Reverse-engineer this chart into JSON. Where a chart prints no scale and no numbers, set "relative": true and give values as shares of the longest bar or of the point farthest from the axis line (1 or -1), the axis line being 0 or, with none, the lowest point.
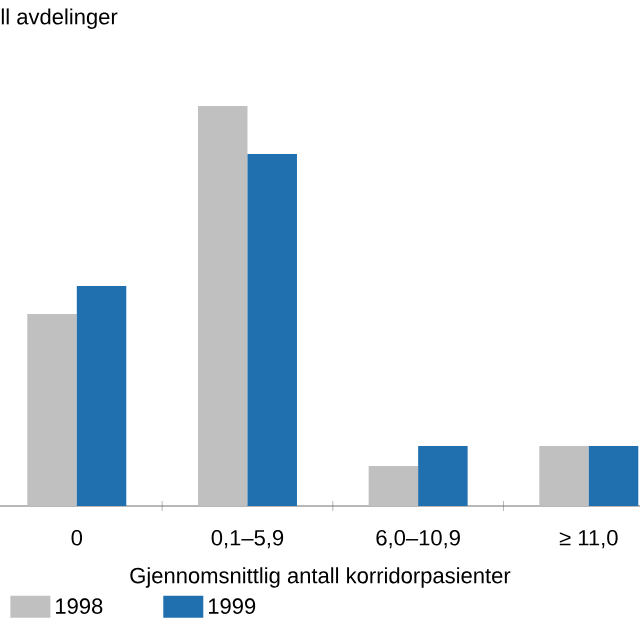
{
  "chart_data": {
    "type": "bar",
    "ylabel": "ll avdelinger",
    "xlabel": "Gjennomsnittlig antall korridorpasienter",
    "categories": [
      "0",
      "0,1–5,9",
      "6,0–10,9",
      "≥ 11,0"
    ],
    "relative": true,
    "series": [
      {
        "name": "1998",
        "color": "#c0c0c0",
        "values": [
          0.48,
          1,
          0.1,
          0.15
        ]
      },
      {
        "name": "1999",
        "color": "#2070b0",
        "values": [
          0.55,
          0.88,
          0.15,
          0.15
        ]
      }
    ],
    "legend": "bottom"
  }
}
